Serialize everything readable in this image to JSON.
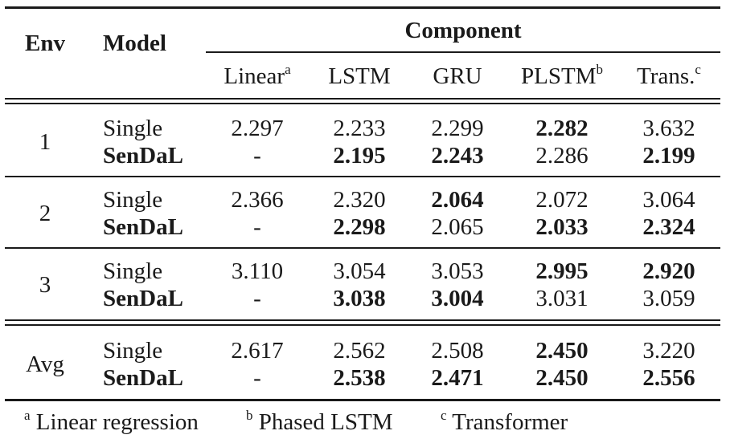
{
  "header": {
    "env": "Env",
    "model": "Model",
    "component": "Component",
    "columns": [
      {
        "label": "Linear",
        "mark": "a"
      },
      {
        "label": "LSTM",
        "mark": ""
      },
      {
        "label": "GRU",
        "mark": ""
      },
      {
        "label": "PLSTM",
        "mark": "b"
      },
      {
        "label": "Trans.",
        "mark": "c"
      }
    ]
  },
  "groups": [
    {
      "env": "1",
      "rows": [
        {
          "model": "Single",
          "model_bold": false,
          "cells": [
            {
              "v": "2.297",
              "bold": false
            },
            {
              "v": "2.233",
              "bold": false
            },
            {
              "v": "2.299",
              "bold": false
            },
            {
              "v": "2.282",
              "bold": true
            },
            {
              "v": "3.632",
              "bold": false
            }
          ]
        },
        {
          "model": "SenDaL",
          "model_bold": true,
          "cells": [
            {
              "v": "-",
              "bold": false
            },
            {
              "v": "2.195",
              "bold": true
            },
            {
              "v": "2.243",
              "bold": true
            },
            {
              "v": "2.286",
              "bold": false
            },
            {
              "v": "2.199",
              "bold": true
            }
          ]
        }
      ]
    },
    {
      "env": "2",
      "rows": [
        {
          "model": "Single",
          "model_bold": false,
          "cells": [
            {
              "v": "2.366",
              "bold": false
            },
            {
              "v": "2.320",
              "bold": false
            },
            {
              "v": "2.064",
              "bold": true
            },
            {
              "v": "2.072",
              "bold": false
            },
            {
              "v": "3.064",
              "bold": false
            }
          ]
        },
        {
          "model": "SenDaL",
          "model_bold": true,
          "cells": [
            {
              "v": "-",
              "bold": false
            },
            {
              "v": "2.298",
              "bold": true
            },
            {
              "v": "2.065",
              "bold": false
            },
            {
              "v": "2.033",
              "bold": true
            },
            {
              "v": "2.324",
              "bold": true
            }
          ]
        }
      ]
    },
    {
      "env": "3",
      "rows": [
        {
          "model": "Single",
          "model_bold": false,
          "cells": [
            {
              "v": "3.110",
              "bold": false
            },
            {
              "v": "3.054",
              "bold": false
            },
            {
              "v": "3.053",
              "bold": false
            },
            {
              "v": "2.995",
              "bold": true
            },
            {
              "v": "2.920",
              "bold": true
            }
          ]
        },
        {
          "model": "SenDaL",
          "model_bold": true,
          "cells": [
            {
              "v": "-",
              "bold": false
            },
            {
              "v": "3.038",
              "bold": true
            },
            {
              "v": "3.004",
              "bold": true
            },
            {
              "v": "3.031",
              "bold": false
            },
            {
              "v": "3.059",
              "bold": false
            }
          ]
        }
      ]
    },
    {
      "env": "Avg",
      "rows": [
        {
          "model": "Single",
          "model_bold": false,
          "cells": [
            {
              "v": "2.617",
              "bold": false
            },
            {
              "v": "2.562",
              "bold": false
            },
            {
              "v": "2.508",
              "bold": false
            },
            {
              "v": "2.450",
              "bold": true
            },
            {
              "v": "3.220",
              "bold": false
            }
          ]
        },
        {
          "model": "SenDaL",
          "model_bold": true,
          "cells": [
            {
              "v": "-",
              "bold": false
            },
            {
              "v": "2.538",
              "bold": true
            },
            {
              "v": "2.471",
              "bold": true
            },
            {
              "v": "2.450",
              "bold": true
            },
            {
              "v": "2.556",
              "bold": true
            }
          ]
        }
      ]
    }
  ],
  "footnotes": [
    {
      "mark": "a",
      "text": "Linear regression"
    },
    {
      "mark": "b",
      "text": "Phased LSTM"
    },
    {
      "mark": "c",
      "text": "Transformer"
    }
  ]
}
